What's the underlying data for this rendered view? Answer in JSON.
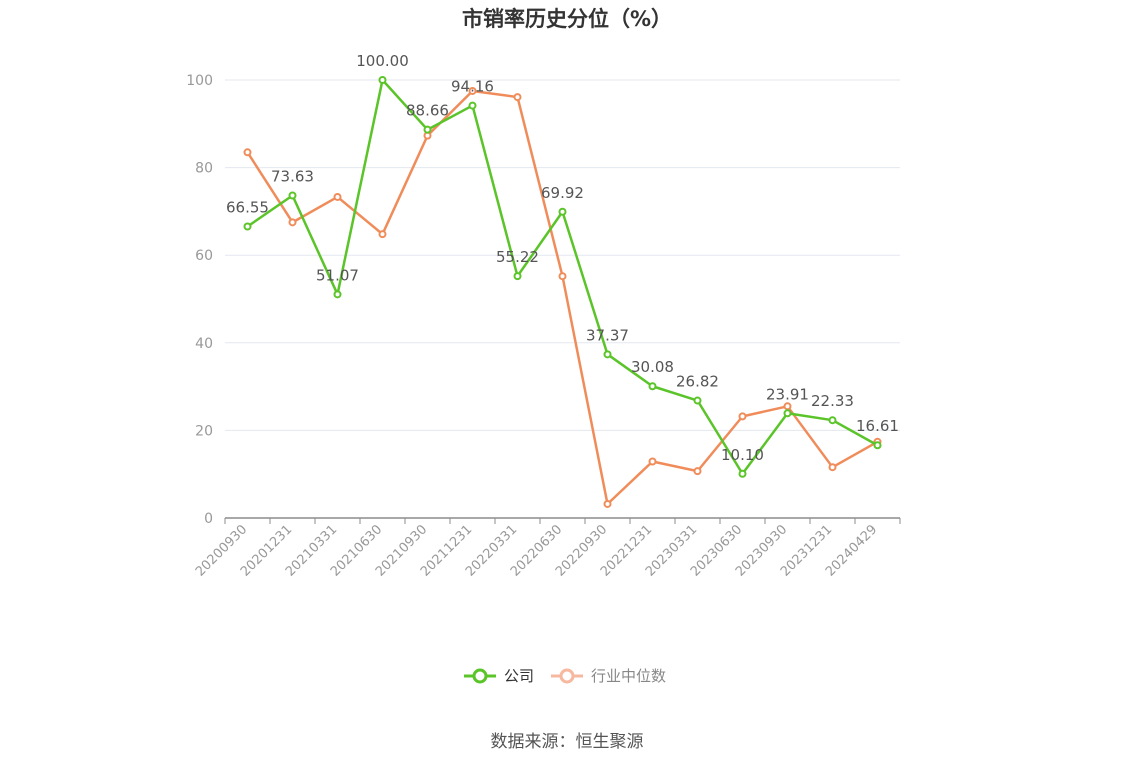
{
  "chart_data": {
    "type": "line",
    "title": "市销率历史分位（%）",
    "categories": [
      "20200930",
      "20201231",
      "20210331",
      "20210630",
      "20210930",
      "20211231",
      "20220331",
      "20220630",
      "20220930",
      "20221231",
      "20230331",
      "20230630",
      "20230930",
      "20231231",
      "20240429"
    ],
    "ylim": [
      0,
      100
    ],
    "yticks": [
      0,
      20,
      40,
      60,
      80,
      100
    ],
    "grid": true,
    "legend_position": "bottom-center",
    "series": [
      {
        "name": "公司",
        "color": "#5ac429",
        "values": [
          66.55,
          73.63,
          51.07,
          100.0,
          88.66,
          94.16,
          55.22,
          69.92,
          37.37,
          30.08,
          26.82,
          10.1,
          23.91,
          22.33,
          16.61
        ],
        "labels": [
          "66.55",
          "73.63",
          "51.07",
          "100.00",
          "88.66",
          "94.16",
          "55.22",
          "69.92",
          "37.37",
          "30.08",
          "26.82",
          "10.10",
          "23.91",
          "22.33",
          "16.61"
        ]
      },
      {
        "name": "行业中位数",
        "color": "#f08c5a",
        "values": [
          83.5,
          67.5,
          73.3,
          64.8,
          87.3,
          97.5,
          96.1,
          55.2,
          3.2,
          12.9,
          10.7,
          23.2,
          25.5,
          11.6,
          17.4
        ]
      }
    ]
  },
  "legend": [
    {
      "label": "公司",
      "color": "#5ac429"
    },
    {
      "label": "行业中位数",
      "color": "#f7b8a0"
    }
  ],
  "source": "数据来源：恒生聚源"
}
